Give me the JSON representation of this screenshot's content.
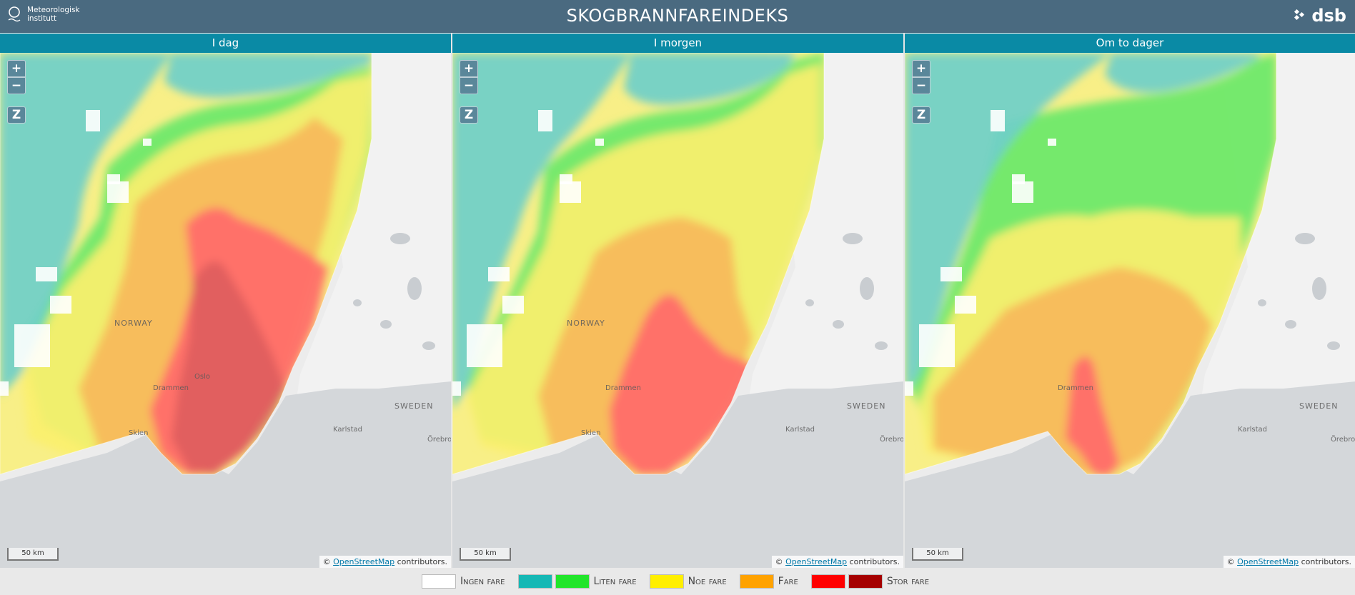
{
  "header": {
    "title": "SKOGBRANNFAREINDEKS",
    "met_logo_line1": "Meteorologisk",
    "met_logo_line2": "institutt",
    "dsb_logo": "dsb"
  },
  "panels": [
    {
      "label": "I dag",
      "risk_level": "high"
    },
    {
      "label": "I morgen",
      "risk_level": "medium-high"
    },
    {
      "label": "Om to dager",
      "risk_level": "medium"
    }
  ],
  "map": {
    "zoom_in": "+",
    "zoom_out": "−",
    "zoom_reset": "Z",
    "scale_label": "50 km",
    "attribution_prefix": "©",
    "attribution_link": "OpenStreetMap",
    "attribution_suffix": "contributors.",
    "places": {
      "norway": "NORWAY",
      "sweden": "SWEDEN",
      "drammen": "Drammen",
      "oslo": "Oslo",
      "skien": "Skien",
      "karlstad": "Karlstad",
      "orebro": "Örebro"
    }
  },
  "legend": {
    "items": [
      {
        "label": "Ingen fare",
        "colors": [
          "#ffffff"
        ]
      },
      {
        "label": "Liten fare",
        "colors": [
          "#16b8b5",
          "#22e52b"
        ]
      },
      {
        "label": "Noe fare",
        "colors": [
          "#ffef00"
        ]
      },
      {
        "label": "Fare",
        "colors": [
          "#ffa200"
        ]
      },
      {
        "label": "Stor fare",
        "colors": [
          "#ff0000",
          "#a50000"
        ]
      }
    ]
  },
  "colors": {
    "header_bg": "#4a6a80",
    "panel_head_bg": "#0a8aa5",
    "teal": "#6fcfc9",
    "green": "#6ae86a",
    "yellow": "#fbf06e",
    "orange": "#f7b85a",
    "red": "#ff6a6a",
    "darkred": "#c85058"
  }
}
